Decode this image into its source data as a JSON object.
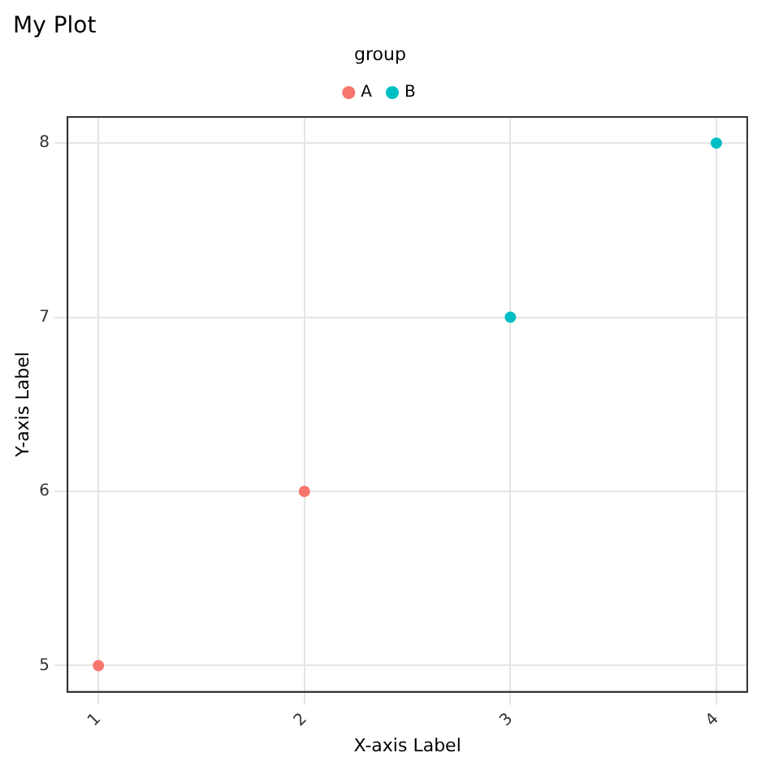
{
  "chart_data": {
    "type": "scatter",
    "title": "My Plot",
    "xlabel": "X-axis Label",
    "ylabel": "Y-axis Label",
    "legend_title": "group",
    "legend": "top",
    "series": [
      {
        "name": "A",
        "color": "#f8766d",
        "x": [
          1,
          2
        ],
        "values": [
          5,
          6
        ]
      },
      {
        "name": "B",
        "color": "#00bfc4",
        "x": [
          3,
          4
        ],
        "values": [
          7,
          8
        ]
      }
    ],
    "xlim": [
      0.85,
      4.15
    ],
    "xticks": [
      1,
      2,
      3,
      4
    ],
    "ylim": [
      4.85,
      8.15
    ],
    "yticks": [
      5,
      6,
      7,
      8
    ],
    "grid": true,
    "marker": "circle"
  }
}
